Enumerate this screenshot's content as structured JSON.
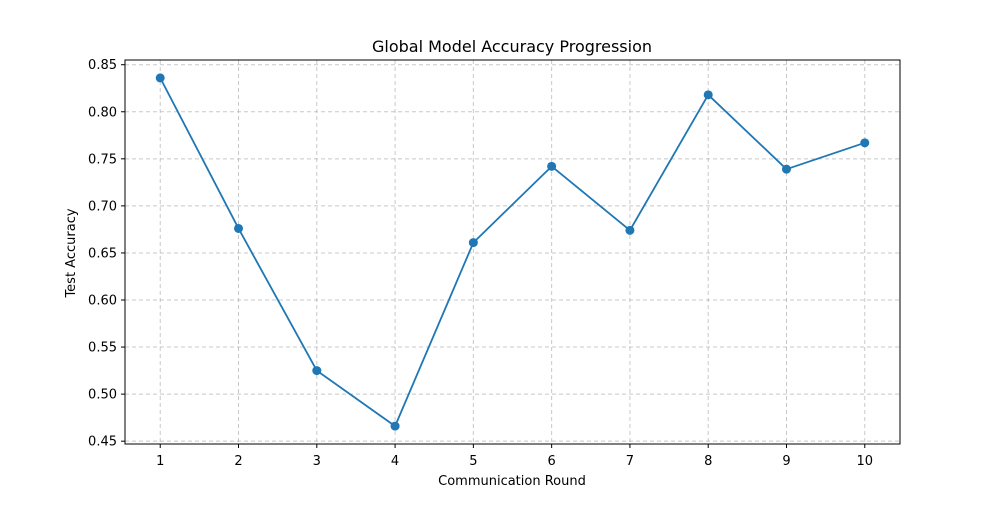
{
  "chart_data": {
    "type": "line",
    "title": "Global Model Accuracy Progression",
    "xlabel": "Communication Round",
    "ylabel": "Test Accuracy",
    "x": [
      1,
      2,
      3,
      4,
      5,
      6,
      7,
      8,
      9,
      10
    ],
    "series": [
      {
        "values": [
          0.836,
          0.676,
          0.525,
          0.466,
          0.661,
          0.742,
          0.674,
          0.818,
          0.739,
          0.767
        ],
        "color": "#1f77b4",
        "marker": "circle"
      }
    ],
    "xticks": [
      "1",
      "2",
      "3",
      "4",
      "5",
      "6",
      "7",
      "8",
      "9",
      "10"
    ],
    "yticks": [
      "0.45",
      "0.50",
      "0.55",
      "0.60",
      "0.65",
      "0.70",
      "0.75",
      "0.80",
      "0.85"
    ],
    "xlim": [
      0.55,
      10.45
    ],
    "ylim": [
      0.447,
      0.855
    ],
    "grid": true,
    "grid_style": "dashed"
  }
}
